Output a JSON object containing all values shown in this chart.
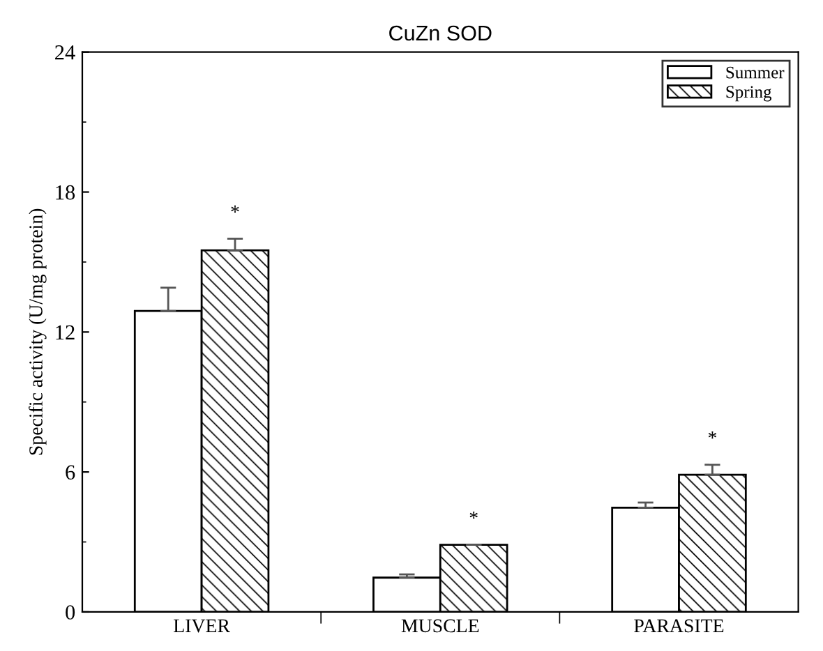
{
  "chart_data": {
    "type": "bar",
    "title": "CuZn SOD",
    "ylabel": "Specific activity (U/mg protein)",
    "categories": [
      "LIVER",
      "MUSCLE",
      "PARASITE"
    ],
    "series": [
      {
        "name": "Summer",
        "color": "#ffffff",
        "values": [
          12.9,
          1.47,
          4.47
        ],
        "errors": [
          1.0,
          0.14,
          0.22
        ]
      },
      {
        "name": "Spring",
        "color": "#000000",
        "values": [
          15.5,
          2.88,
          5.88
        ],
        "errors": [
          0.5,
          null,
          0.43
        ]
      }
    ],
    "annotations": [
      "*",
      "*",
      "*"
    ],
    "ylim": [
      0,
      24
    ],
    "yticks": [
      0,
      6,
      12,
      18,
      24
    ],
    "grid": false,
    "legend": "top right"
  }
}
